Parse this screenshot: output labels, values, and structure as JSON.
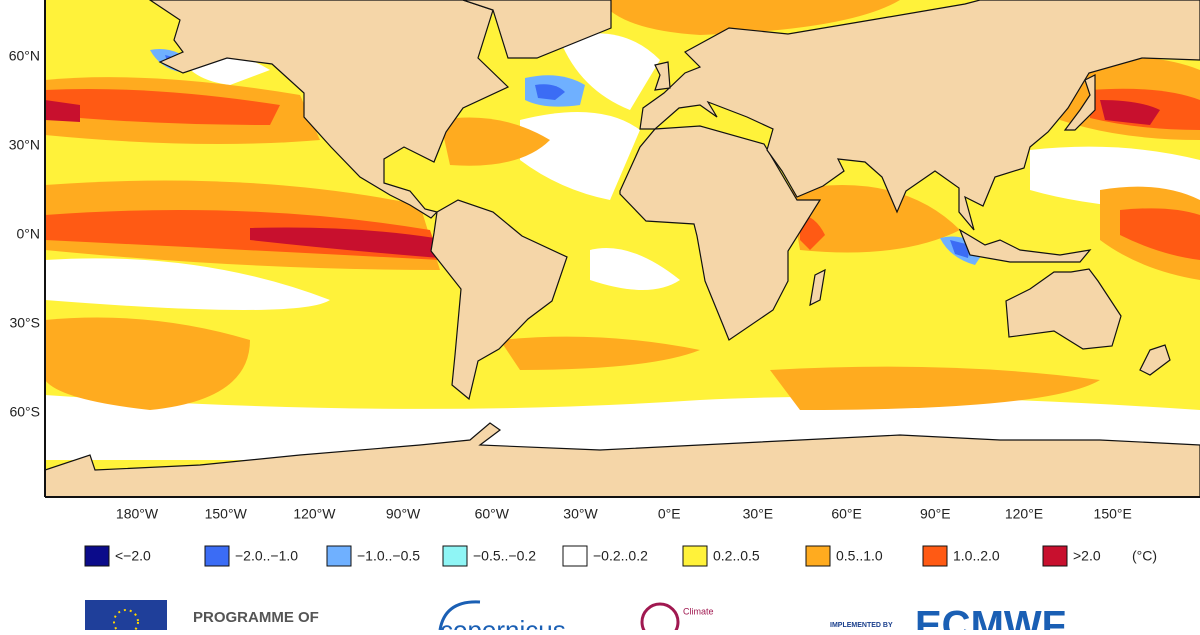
{
  "map": {
    "lat_labels": [
      "60°N",
      "30°N",
      "0°N",
      "30°S",
      "60°S"
    ],
    "lon_labels": [
      "180°W",
      "150°W",
      "120°W",
      "90°W",
      "60°W",
      "30°W",
      "0°E",
      "30°E",
      "60°E",
      "90°E",
      "120°E",
      "150°E"
    ],
    "legend": {
      "items": [
        {
          "label": "<−2.0",
          "color": "#0b0b8a"
        },
        {
          "label": "−2.0..−1.0",
          "color": "#3b6cf5"
        },
        {
          "label": "−1.0..−0.5",
          "color": "#6fb0ff"
        },
        {
          "label": "−0.5..−0.2",
          "color": "#8ff5f5"
        },
        {
          "label": "−0.2..0.2",
          "color": "#ffffff"
        },
        {
          "label": "0.2..0.5",
          "color": "#fff23a"
        },
        {
          "label": "0.5..1.0",
          "color": "#ffab1f"
        },
        {
          "label": "1.0..2.0",
          "color": "#ff5a14"
        },
        {
          "label": ">2.0",
          "color": "#c8102e"
        }
      ],
      "unit": "(°C)"
    }
  },
  "footer": {
    "programme": "PROGRAMME OF",
    "copernicus": "copernicus",
    "climate": "Climate",
    "implemented": "IMPLEMENTED BY",
    "ecmwf": "ECMWF"
  }
}
